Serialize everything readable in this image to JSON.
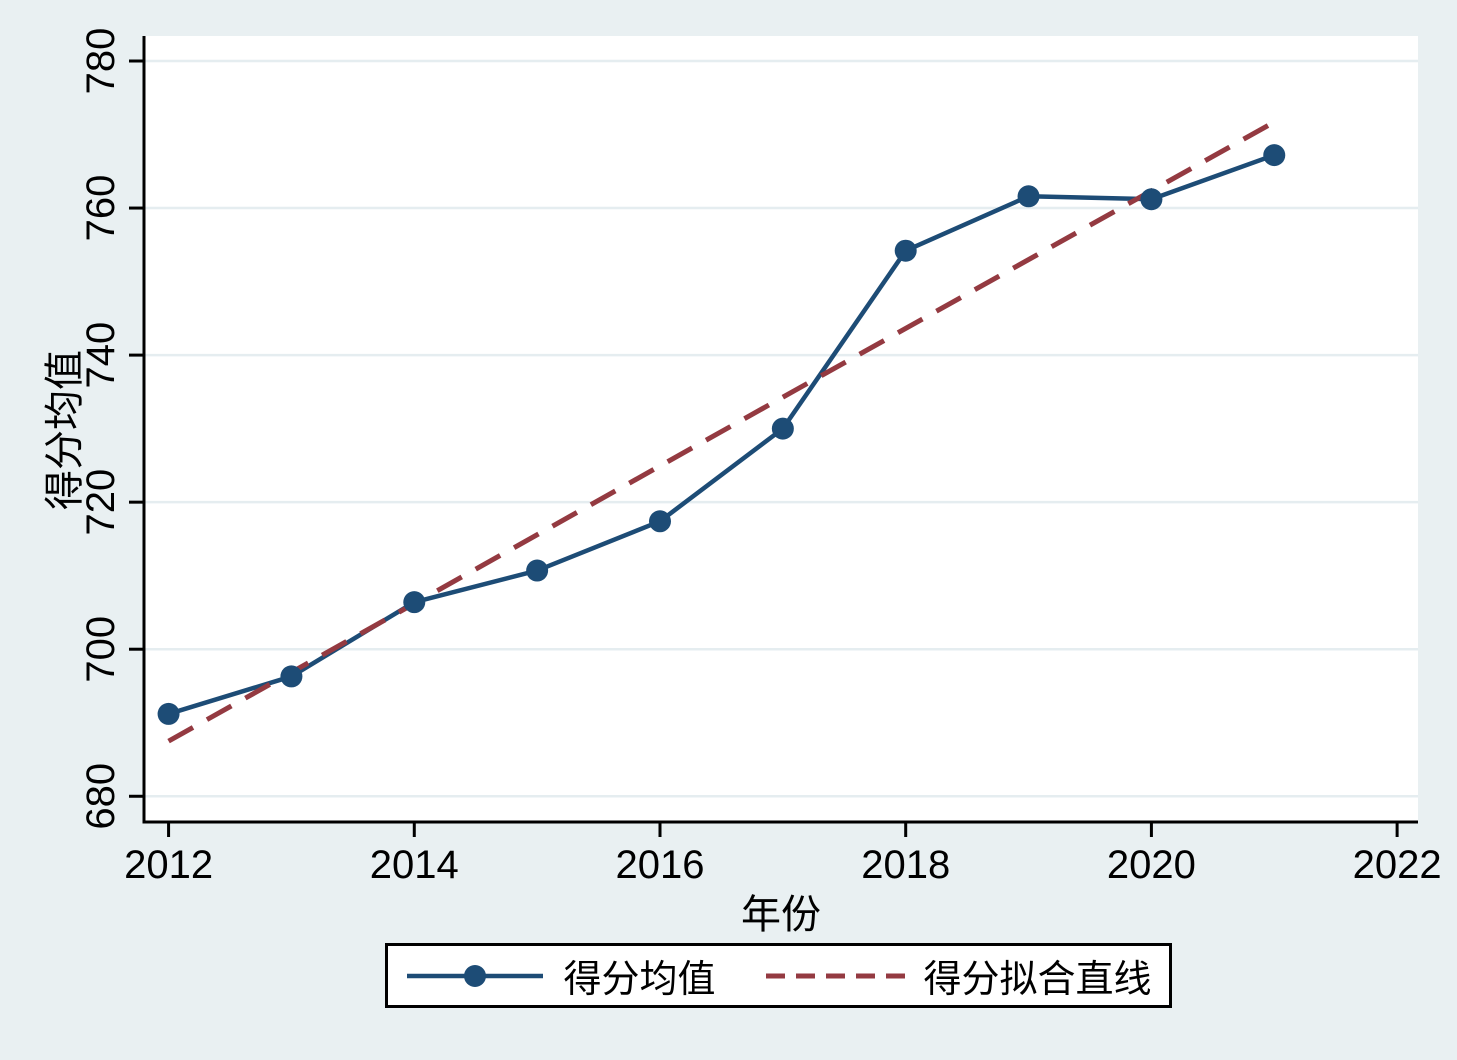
{
  "figure": {
    "background_color": "#e9f0f2",
    "plot_background": "#ffffff",
    "grid_color": "#e5edf0",
    "axis_color": "#000000",
    "text_color": "#000000"
  },
  "chart_data": {
    "type": "line",
    "title": "",
    "xlabel": "年份",
    "ylabel": "得分均值",
    "x": [
      2012,
      2013,
      2014,
      2015,
      2016,
      2017,
      2018,
      2019,
      2020,
      2021
    ],
    "series": [
      {
        "name": "得分均值",
        "style": "solid-line-with-markers",
        "color": "#1d4c76",
        "values": [
          691.2,
          696.3,
          706.4,
          710.7,
          717.4,
          730.0,
          754.2,
          761.6,
          761.2,
          767.2
        ]
      },
      {
        "name": "得分拟合直线",
        "style": "dashed-trend-line",
        "color": "#943a41",
        "endpoints_x": [
          2012,
          2021
        ],
        "endpoints_y": [
          687.5,
          771.7
        ]
      }
    ],
    "xticks": [
      2012,
      2014,
      2016,
      2018,
      2020,
      2022
    ],
    "yticks": [
      680,
      700,
      720,
      740,
      760,
      780
    ],
    "xlim": [
      2011.8,
      2022.17
    ],
    "ylim": [
      676.5,
      783.4
    ],
    "grid": "horizontal-only",
    "legend_position": "bottom-center"
  },
  "legend": {
    "items": [
      {
        "label": "得分均值",
        "marker": "solid-line-with-dot",
        "color": "#1d4c76"
      },
      {
        "label": "得分拟合直线",
        "marker": "dashed-line",
        "color": "#943a41"
      }
    ]
  }
}
